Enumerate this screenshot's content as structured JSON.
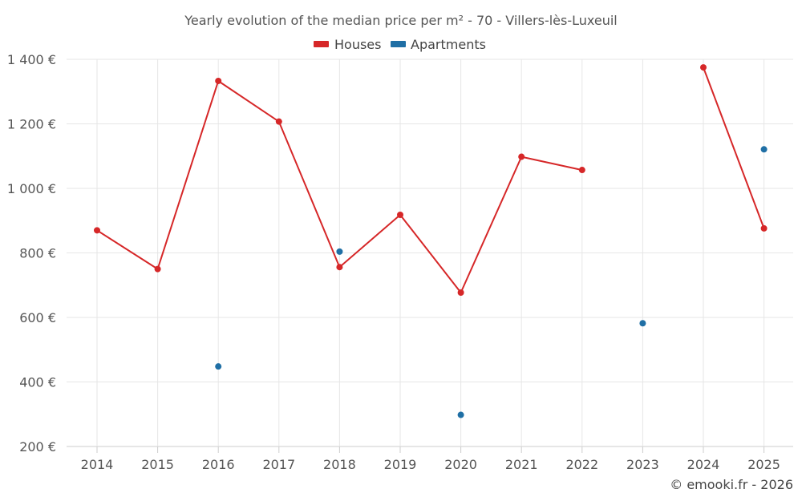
{
  "chart_data": {
    "type": "line",
    "title": "Yearly evolution of the median price per m² - 70 - Villers-lès-Luxeuil",
    "categories": [
      "2014",
      "2015",
      "2016",
      "2017",
      "2018",
      "2019",
      "2020",
      "2021",
      "2022",
      "2023",
      "2024",
      "2025"
    ],
    "series": [
      {
        "name": "Houses",
        "color": "#d62728",
        "values": [
          870,
          750,
          1333,
          1207,
          756,
          918,
          677,
          1098,
          1057,
          null,
          1375,
          876
        ]
      },
      {
        "name": "Apartments",
        "color": "#1f6fa5",
        "values": [
          null,
          null,
          448,
          null,
          804,
          null,
          298,
          null,
          null,
          582,
          null,
          1121
        ]
      }
    ],
    "ylim": [
      200,
      1400
    ],
    "yticks": [
      200,
      400,
      600,
      800,
      1000,
      1200,
      1400
    ],
    "ytick_labels": [
      "200 €",
      "400 €",
      "600 €",
      "800 €",
      "1 000 €",
      "1 200 €",
      "1 400 €"
    ],
    "legend_position": "top-center",
    "grid": true
  },
  "credit": "© emooki.fr - 2026"
}
